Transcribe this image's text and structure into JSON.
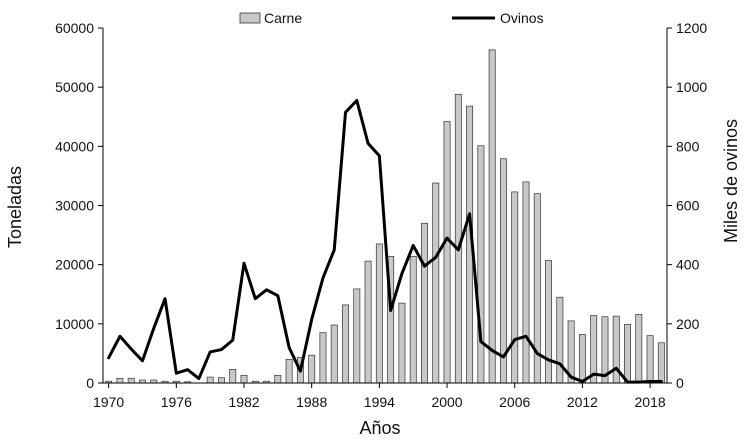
{
  "chart_data": {
    "type": "bar+line",
    "title": "",
    "xlabel": "Años",
    "ylabel_left": "Toneladas",
    "ylabel_right": "Miles de ovinos",
    "x": [
      1970,
      1971,
      1972,
      1973,
      1974,
      1975,
      1976,
      1977,
      1978,
      1979,
      1980,
      1981,
      1982,
      1983,
      1984,
      1985,
      1986,
      1987,
      1988,
      1989,
      1990,
      1991,
      1992,
      1993,
      1994,
      1995,
      1996,
      1997,
      1998,
      1999,
      2000,
      2001,
      2002,
      2003,
      2004,
      2005,
      2006,
      2007,
      2008,
      2009,
      2010,
      2011,
      2012,
      2013,
      2014,
      2015,
      2016,
      2017,
      2018,
      2019
    ],
    "xticks": [
      "1970",
      "1976",
      "1982",
      "1988",
      "1994",
      "2000",
      "2006",
      "2012",
      "2018"
    ],
    "ylim_left": [
      0,
      60000
    ],
    "yticks_left": [
      "0",
      "10000",
      "20000",
      "30000",
      "40000",
      "50000",
      "60000"
    ],
    "ylim_right": [
      0,
      1200
    ],
    "yticks_right": [
      "0",
      "200",
      "400",
      "600",
      "800",
      "1000",
      "1200"
    ],
    "legend": {
      "position": "top-center",
      "bar_label": "Carne",
      "line_label": "Ovinos"
    },
    "series": [
      {
        "name": "Carne",
        "type": "bar",
        "axis": "left",
        "color": "#c8c8c8",
        "values": [
          300,
          800,
          800,
          500,
          500,
          300,
          300,
          200,
          0,
          1000,
          900,
          2300,
          1300,
          300,
          300,
          1300,
          4000,
          4300,
          4700,
          8500,
          9800,
          13200,
          15900,
          20600,
          23500,
          21400,
          13500,
          21400,
          27000,
          33800,
          44200,
          48800,
          46800,
          40100,
          56300,
          37900,
          32300,
          34000,
          32000,
          20700,
          14500,
          10500,
          8200,
          11400,
          11200,
          11300,
          9900,
          11600,
          8000,
          6800
        ]
      },
      {
        "name": "Ovinos",
        "type": "line",
        "axis": "right",
        "color": "#000000",
        "values": [
          85,
          158,
          115,
          75,
          185,
          285,
          33,
          45,
          15,
          105,
          113,
          145,
          405,
          285,
          315,
          295,
          120,
          40,
          215,
          355,
          450,
          915,
          955,
          810,
          768,
          245,
          370,
          465,
          395,
          425,
          490,
          450,
          572,
          140,
          110,
          88,
          147,
          158,
          100,
          78,
          65,
          20,
          5,
          30,
          25,
          50,
          3,
          3,
          5,
          5
        ]
      }
    ]
  }
}
